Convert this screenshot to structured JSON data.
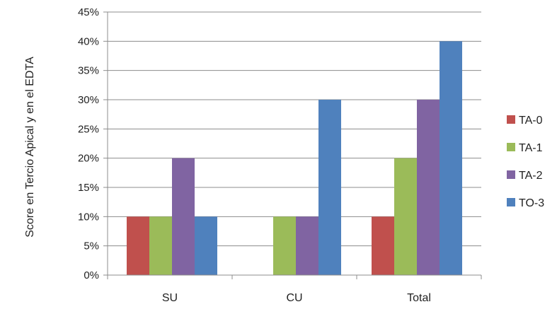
{
  "chart_data": {
    "type": "bar",
    "title": "",
    "xlabel": "",
    "ylabel": "Score en Tercio Apical y en el EDTA",
    "categories": [
      "SU",
      "CU",
      "Total"
    ],
    "series": [
      {
        "name": "TA-0",
        "color": "#c0504d",
        "values": [
          10,
          0,
          10
        ]
      },
      {
        "name": "TA-1",
        "color": "#9bbb59",
        "values": [
          10,
          10,
          20
        ]
      },
      {
        "name": "TA-2",
        "color": "#8064a2",
        "values": [
          20,
          10,
          30
        ]
      },
      {
        "name": "TO-3",
        "color": "#4f81bd",
        "values": [
          10,
          30,
          40
        ]
      }
    ],
    "ylim": [
      0,
      45
    ],
    "yticks": [
      0,
      5,
      10,
      15,
      20,
      25,
      30,
      35,
      40,
      45
    ],
    "ytick_labels": [
      "0%",
      "5%",
      "10%",
      "15%",
      "20%",
      "25%",
      "30%",
      "35%",
      "40%",
      "45%"
    ],
    "grid": true,
    "legend_position": "right"
  }
}
